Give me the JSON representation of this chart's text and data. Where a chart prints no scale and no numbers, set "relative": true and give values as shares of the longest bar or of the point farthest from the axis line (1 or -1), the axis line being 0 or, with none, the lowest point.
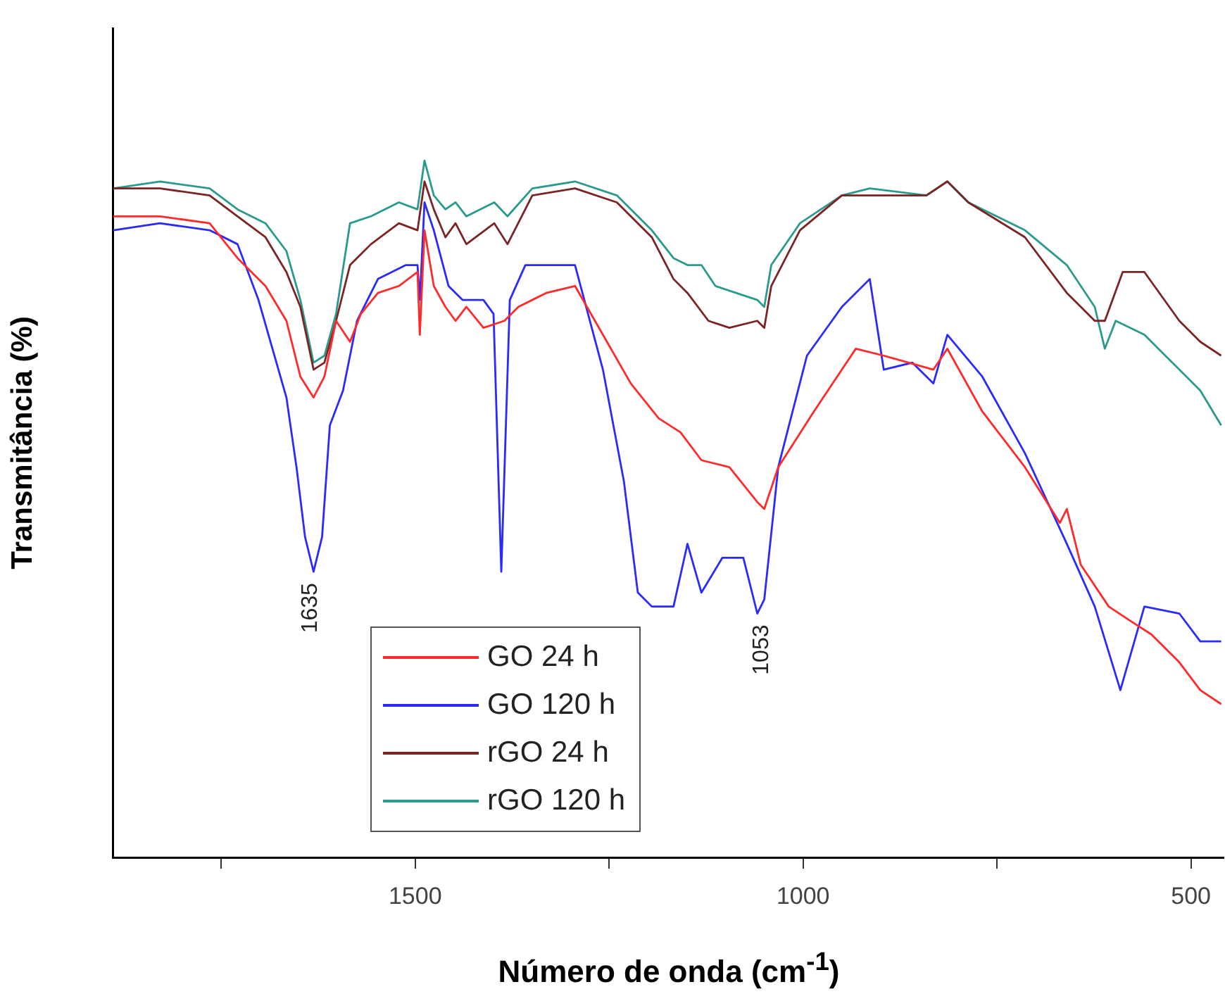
{
  "chart_data": {
    "type": "line",
    "relative": true,
    "xlabel": "Número de onda (cm$^{-1}$)",
    "ylabel": "Transmitância (%)",
    "xlim": [
      1890,
      458
    ],
    "xticks": [
      {
        "value": 1750,
        "label": null
      },
      1500,
      {
        "value": 1250,
        "label": null
      },
      1000,
      {
        "value": 750,
        "label": null
      },
      500
    ],
    "legend": "bottom left",
    "annotations": [
      {
        "text": "1635",
        "x": 1635,
        "y": 0.41
      },
      {
        "text": "1053",
        "x": 1053,
        "y": 0.35
      }
    ],
    "series": [
      {
        "name": "GO 24 h",
        "color": "#ff2a2a",
        "x": [
          1889,
          1829,
          1765,
          1729,
          1693,
          1666,
          1648,
          1631,
          1617,
          1602,
          1584,
          1570,
          1548,
          1521,
          1497,
          1494,
          1488,
          1476,
          1461,
          1448,
          1434,
          1412,
          1385,
          1367,
          1331,
          1294,
          1258,
          1222,
          1186,
          1158,
          1131,
          1095,
          1059,
          1050,
          1032,
          986,
          932,
          896,
          832,
          814,
          769,
          714,
          669,
          660,
          642,
          606,
          579,
          551,
          515,
          488,
          461
        ],
        "values": [
          0.92,
          0.92,
          0.91,
          0.86,
          0.82,
          0.77,
          0.69,
          0.66,
          0.69,
          0.77,
          0.74,
          0.78,
          0.81,
          0.82,
          0.84,
          0.75,
          0.9,
          0.82,
          0.79,
          0.77,
          0.79,
          0.76,
          0.77,
          0.79,
          0.81,
          0.82,
          0.75,
          0.68,
          0.63,
          0.61,
          0.57,
          0.56,
          0.51,
          0.5,
          0.56,
          0.64,
          0.73,
          0.72,
          0.7,
          0.73,
          0.64,
          0.56,
          0.48,
          0.5,
          0.42,
          0.36,
          0.34,
          0.32,
          0.28,
          0.24,
          0.22
        ]
      },
      {
        "name": "GO 120 h",
        "color": "#2a2aff",
        "x": [
          1889,
          1829,
          1765,
          1729,
          1702,
          1684,
          1666,
          1653,
          1642,
          1631,
          1620,
          1610,
          1593,
          1575,
          1548,
          1512,
          1497,
          1494,
          1488,
          1476,
          1457,
          1439,
          1412,
          1399,
          1389,
          1378,
          1358,
          1327,
          1294,
          1258,
          1231,
          1213,
          1195,
          1167,
          1149,
          1131,
          1104,
          1077,
          1059,
          1050,
          1032,
          995,
          950,
          914,
          896,
          859,
          832,
          814,
          769,
          714,
          660,
          624,
          591,
          560,
          515,
          488,
          461
        ],
        "values": [
          0.9,
          0.91,
          0.9,
          0.88,
          0.8,
          0.73,
          0.66,
          0.56,
          0.46,
          0.41,
          0.46,
          0.62,
          0.67,
          0.77,
          0.83,
          0.85,
          0.85,
          0.8,
          0.94,
          0.9,
          0.82,
          0.8,
          0.8,
          0.78,
          0.41,
          0.8,
          0.85,
          0.85,
          0.85,
          0.7,
          0.54,
          0.38,
          0.36,
          0.36,
          0.45,
          0.38,
          0.43,
          0.43,
          0.35,
          0.37,
          0.56,
          0.72,
          0.79,
          0.83,
          0.7,
          0.71,
          0.68,
          0.75,
          0.69,
          0.58,
          0.45,
          0.36,
          0.24,
          0.36,
          0.35,
          0.31,
          0.31
        ]
      },
      {
        "name": "rGO 24 h",
        "color": "#7a2424",
        "x": [
          1889,
          1829,
          1765,
          1729,
          1693,
          1666,
          1648,
          1631,
          1617,
          1602,
          1584,
          1557,
          1521,
          1497,
          1488,
          1476,
          1461,
          1448,
          1434,
          1398,
          1381,
          1349,
          1294,
          1240,
          1195,
          1167,
          1149,
          1122,
          1095,
          1059,
          1050,
          1041,
          1004,
          950,
          914,
          841,
          814,
          787,
          714,
          660,
          624,
          611,
          588,
          560,
          515,
          488,
          461
        ],
        "values": [
          0.96,
          0.96,
          0.95,
          0.92,
          0.89,
          0.84,
          0.79,
          0.7,
          0.71,
          0.77,
          0.85,
          0.88,
          0.91,
          0.9,
          0.97,
          0.93,
          0.89,
          0.91,
          0.88,
          0.91,
          0.88,
          0.95,
          0.96,
          0.94,
          0.89,
          0.83,
          0.81,
          0.77,
          0.76,
          0.77,
          0.76,
          0.82,
          0.9,
          0.95,
          0.95,
          0.95,
          0.97,
          0.94,
          0.89,
          0.81,
          0.77,
          0.77,
          0.84,
          0.84,
          0.77,
          0.74,
          0.72
        ]
      },
      {
        "name": "rGO 120 h",
        "color": "#2a9a8c",
        "x": [
          1889,
          1829,
          1765,
          1729,
          1693,
          1666,
          1648,
          1631,
          1617,
          1602,
          1584,
          1557,
          1521,
          1497,
          1488,
          1476,
          1461,
          1448,
          1434,
          1398,
          1381,
          1349,
          1294,
          1240,
          1195,
          1167,
          1149,
          1131,
          1113,
          1059,
          1050,
          1041,
          1004,
          950,
          914,
          841,
          814,
          787,
          714,
          660,
          624,
          611,
          597,
          560,
          515,
          488,
          461
        ],
        "values": [
          0.96,
          0.97,
          0.96,
          0.93,
          0.91,
          0.87,
          0.8,
          0.71,
          0.72,
          0.78,
          0.91,
          0.92,
          0.94,
          0.93,
          1,
          0.95,
          0.93,
          0.94,
          0.92,
          0.94,
          0.92,
          0.96,
          0.97,
          0.95,
          0.9,
          0.86,
          0.85,
          0.85,
          0.82,
          0.8,
          0.79,
          0.85,
          0.91,
          0.95,
          0.96,
          0.95,
          0.97,
          0.94,
          0.9,
          0.85,
          0.79,
          0.73,
          0.77,
          0.75,
          0.7,
          0.67,
          0.62
        ]
      }
    ]
  }
}
